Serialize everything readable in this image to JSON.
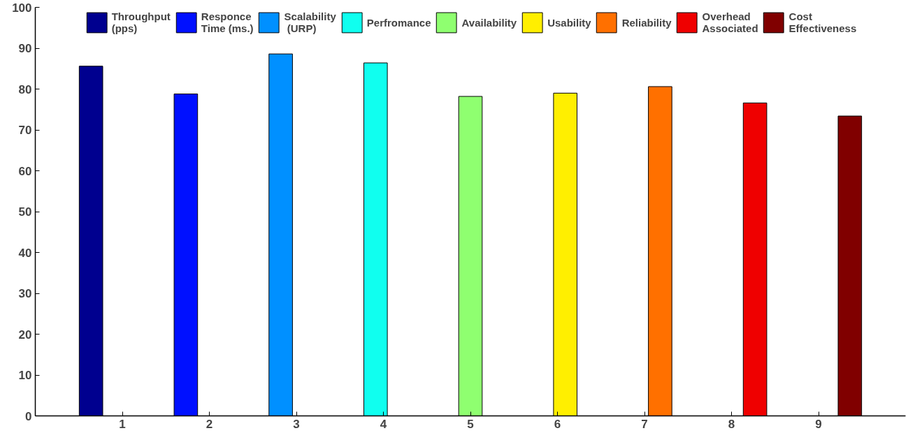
{
  "chart_data": {
    "type": "bar",
    "x": [
      1,
      2,
      3,
      4,
      5,
      6,
      7,
      8,
      9
    ],
    "xlim": [
      0,
      10
    ],
    "xticks": [
      1,
      2,
      3,
      4,
      5,
      6,
      7,
      8,
      9
    ],
    "ylim": [
      0,
      100
    ],
    "yticks": [
      0,
      10,
      20,
      30,
      40,
      50,
      60,
      70,
      80,
      90,
      100
    ],
    "grid": false,
    "legend": "top",
    "series": [
      {
        "name": "Throughput\n(pps)",
        "color": "#00008f",
        "values": [
          85.6,
          null,
          null,
          null,
          null,
          null,
          null,
          null,
          null
        ]
      },
      {
        "name": "Responce\nTime (ms.)",
        "color": "#0010ff",
        "values": [
          null,
          78.8,
          null,
          null,
          null,
          null,
          null,
          null,
          null
        ]
      },
      {
        "name": "Scalability\n (URP)",
        "color": "#0090ff",
        "values": [
          null,
          null,
          88.6,
          null,
          null,
          null,
          null,
          null,
          null
        ]
      },
      {
        "name": "Perfromance",
        "color": "#10ffef",
        "values": [
          null,
          null,
          null,
          86.4,
          null,
          null,
          null,
          null,
          null
        ]
      },
      {
        "name": "Availability",
        "color": "#8fff70",
        "values": [
          null,
          null,
          null,
          null,
          78.2,
          null,
          null,
          null,
          null
        ]
      },
      {
        "name": "Usability",
        "color": "#ffef00",
        "values": [
          null,
          null,
          null,
          null,
          null,
          79.0,
          null,
          null,
          null
        ]
      },
      {
        "name": "Reliability",
        "color": "#ff7000",
        "values": [
          null,
          null,
          null,
          null,
          null,
          null,
          80.6,
          null,
          null
        ]
      },
      {
        "name": "Overhead\nAssociated",
        "color": "#ef0000",
        "values": [
          null,
          null,
          null,
          null,
          null,
          null,
          null,
          76.6,
          null
        ]
      },
      {
        "name": "Cost\nEffectiveness",
        "color": "#800000",
        "values": [
          null,
          null,
          null,
          null,
          null,
          null,
          null,
          null,
          73.4
        ]
      }
    ]
  }
}
